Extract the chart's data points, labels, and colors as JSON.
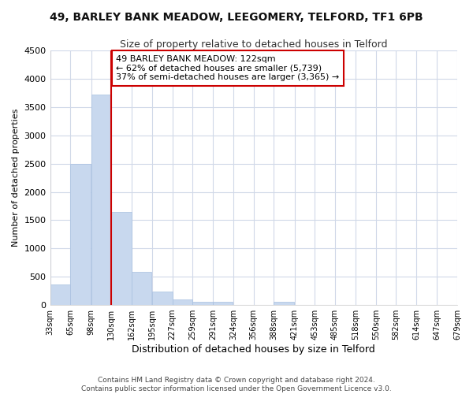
{
  "title": "49, BARLEY BANK MEADOW, LEEGOMERY, TELFORD, TF1 6PB",
  "subtitle": "Size of property relative to detached houses in Telford",
  "xlabel": "Distribution of detached houses by size in Telford",
  "ylabel": "Number of detached properties",
  "bar_color": "#c8d8ee",
  "bar_edge_color": "#a8c0e0",
  "property_line_x": 130,
  "property_line_color": "#cc0000",
  "annotation_text": "49 BARLEY BANK MEADOW: 122sqm\n← 62% of detached houses are smaller (5,739)\n37% of semi-detached houses are larger (3,365) →",
  "annotation_box_color": "#cc0000",
  "bins": [
    33,
    65,
    98,
    130,
    162,
    195,
    227,
    259,
    291,
    324,
    356,
    388,
    421,
    453,
    485,
    518,
    550,
    582,
    614,
    647,
    679
  ],
  "values": [
    370,
    2500,
    3720,
    1640,
    590,
    235,
    105,
    60,
    60,
    0,
    0,
    55,
    0,
    0,
    0,
    0,
    0,
    0,
    0,
    0
  ],
  "ylim": [
    0,
    4500
  ],
  "yticks": [
    0,
    500,
    1000,
    1500,
    2000,
    2500,
    3000,
    3500,
    4000,
    4500
  ],
  "background_color": "#ffffff",
  "grid_color": "#d0d8e8",
  "footer": "Contains HM Land Registry data © Crown copyright and database right 2024.\nContains public sector information licensed under the Open Government Licence v3.0."
}
